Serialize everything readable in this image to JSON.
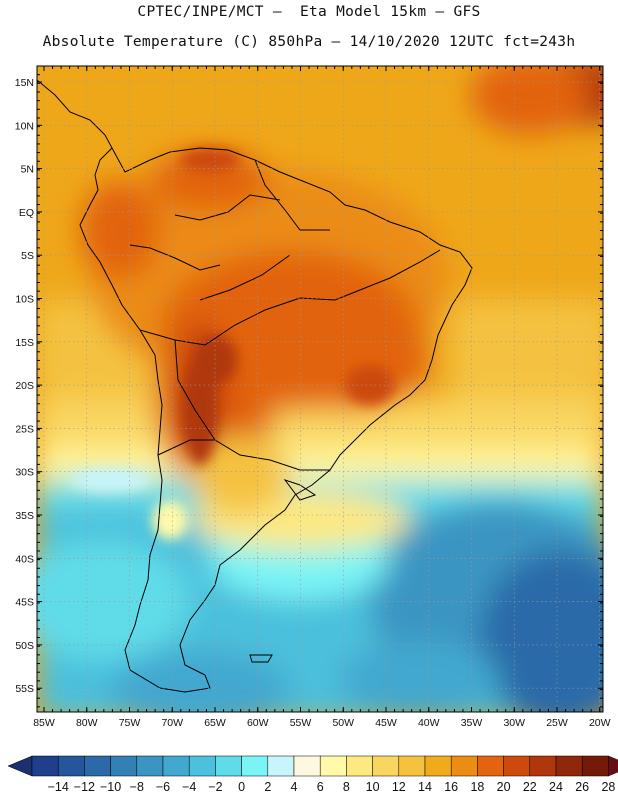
{
  "title_line1": "CPTEC/INPE/MCT –  Eta Model 15km – GFS",
  "title_line2": "Absolute Temperature (C) 850hPa – 14/10/2020 12UTC fct=243h",
  "lat_labels": [
    "15N",
    "10N",
    "5N",
    "EQ",
    "5S",
    "10S",
    "15S",
    "20S",
    "25S",
    "30S",
    "35S",
    "40S",
    "45S",
    "50S",
    "55S"
  ],
  "lon_labels": [
    "85W",
    "80W",
    "75W",
    "70W",
    "65W",
    "60W",
    "55W",
    "50W",
    "45W",
    "40W",
    "35W",
    "30W",
    "25W",
    "20W"
  ],
  "colorbar": {
    "ticks": [
      "-14",
      "-12",
      "-10",
      "-8",
      "-6",
      "-4",
      "-2",
      "0",
      "2",
      "4",
      "6",
      "8",
      "10",
      "12",
      "14",
      "16",
      "18",
      "20",
      "22",
      "24",
      "26",
      "28"
    ],
    "colors": [
      "#1f3f8c",
      "#25559b",
      "#2b6aa8",
      "#3380b5",
      "#3a95c2",
      "#42a8cf",
      "#4cc0dc",
      "#60dbe8",
      "#7bf4f5",
      "#c8f4fb",
      "#fff8e0",
      "#fffaaa",
      "#fde982",
      "#f9d660",
      "#f4c23f",
      "#f0ab1c",
      "#eb8c14",
      "#e26410",
      "#cc4a0e",
      "#b0370c",
      "#8f270a",
      "#731a08"
    ],
    "under_color": "#1c2f6e",
    "over_color": "#6a0d18"
  }
}
